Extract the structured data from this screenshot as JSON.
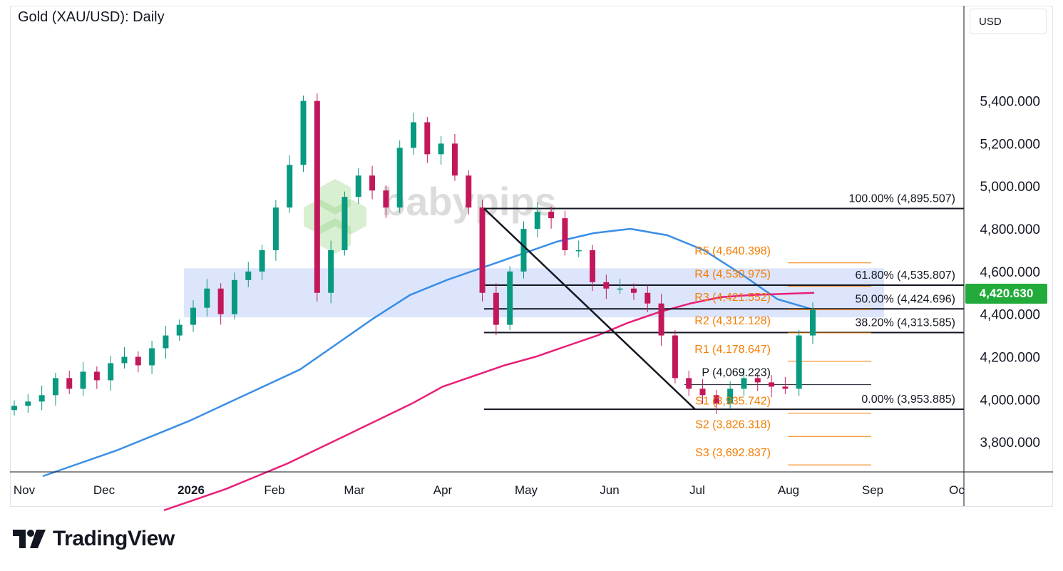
{
  "header": {
    "title": "Gold (XAU/USD): Daily",
    "currency": "USD",
    "last_price": "4,420.630"
  },
  "watermark": {
    "brand": "babypips"
  },
  "footer": {
    "logo_text": "TradingView"
  },
  "colors": {
    "up_candle": "#089981",
    "down_candle": "#c2185b",
    "ma_fast": "#3a8ee6",
    "ma_slow": "#e91e78",
    "pivot_label": "#f57c00",
    "zone_fill": "#d6e0fb",
    "last_price_bg": "#22ab3b"
  },
  "chart_data": {
    "type": "candlestick",
    "title": "Gold (XAU/USD): Daily",
    "ylim": [
      3660,
      5840
    ],
    "y_ticks": [
      3800,
      4000,
      4200,
      4400,
      4600,
      4800,
      5000,
      5200,
      5400
    ],
    "y_tick_labels": [
      "3,800.000",
      "4,000.000",
      "4,200.000",
      "4,400.000",
      "4,600.000",
      "4,800.000",
      "5,000.000",
      "5,200.000",
      "5,400.000"
    ],
    "x_axis_labels": [
      "Nov",
      "Dec",
      "2026",
      "Feb",
      "Mar",
      "Apr",
      "May",
      "Jun",
      "Jul",
      "Aug",
      "Sep",
      "Oc"
    ],
    "last_price": 4420.63,
    "resistance_zone": [
      4385,
      4615
    ],
    "fibonacci": {
      "start_price": 4895.507,
      "end_price": 3953.885,
      "levels": [
        {
          "label": "100.00% (4,895.507)",
          "value": 4895.507
        },
        {
          "label": "61.80% (4,535.807)",
          "value": 4535.807
        },
        {
          "label": "50.00% (4,424.696)",
          "value": 4424.696
        },
        {
          "label": "38.20% (4,313.585)",
          "value": 4313.585
        },
        {
          "label": "0.00% (3,953.885)",
          "value": 3953.885
        }
      ]
    },
    "pivots": [
      {
        "label": "R5 (4,640.398)",
        "value": 4640.398
      },
      {
        "label": "R4 (4,530.975)",
        "value": 4530.975
      },
      {
        "label": "R3 (4,421.552)",
        "value": 4421.552
      },
      {
        "label": "R2 (4,312.128)",
        "value": 4312.128
      },
      {
        "label": "R1 (4,178.647)",
        "value": 4178.647
      },
      {
        "label": "P (4,069.223)",
        "value": 4069.223
      },
      {
        "label": "S1 (3,935.742)",
        "value": 3935.742
      },
      {
        "label": "S2 (3,826.318)",
        "value": 3826.318
      },
      {
        "label": "S3 (3,692.837)",
        "value": 3692.837
      }
    ],
    "ma_fast": [
      3640,
      3700,
      3760,
      3830,
      3900,
      3980,
      4060,
      4140,
      4260,
      4380,
      4490,
      4560,
      4620,
      4680,
      4740,
      4780,
      4800,
      4770,
      4700,
      4590,
      4470,
      4420
    ],
    "ma_slow": [
      3480,
      3530,
      3580,
      3640,
      3700,
      3770,
      3840,
      3910,
      3980,
      4060,
      4110,
      4160,
      4200,
      4250,
      4300,
      4360,
      4410,
      4450,
      4480,
      4490,
      4495,
      4500
    ],
    "closes": [
      3970,
      3990,
      4020,
      4100,
      4050,
      4130,
      4090,
      4170,
      4200,
      4160,
      4240,
      4300,
      4350,
      4430,
      4520,
      4400,
      4560,
      4600,
      4700,
      4900,
      5100,
      5400,
      4500,
      4700,
      4950,
      5050,
      4980,
      4900,
      5180,
      5300,
      5150,
      5200,
      5050,
      4900,
      4500,
      4350,
      4600,
      4800,
      4880,
      4850,
      4700,
      4700,
      4550,
      4520,
      4520,
      4500,
      4450,
      4300,
      4100,
      4050,
      4020,
      3980,
      4050,
      4100,
      4080,
      4060,
      4050,
      4300,
      4420
    ]
  }
}
